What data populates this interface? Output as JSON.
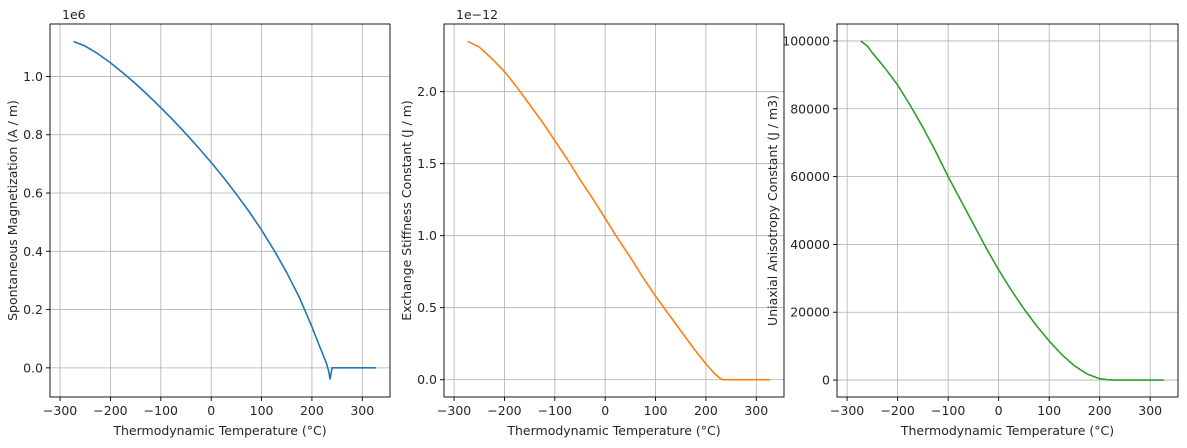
{
  "chart_data": [
    {
      "type": "line",
      "xlabel": "Thermodynamic Temperature (°C)",
      "ylabel": "Spontaneous Magnetization (A / m)",
      "offset_text": "1e6",
      "xlim": [
        -320,
        355
      ],
      "ylim": [
        -0.1,
        1.18
      ],
      "xticks": [
        -300,
        -200,
        -100,
        0,
        100,
        200,
        300
      ],
      "yticks": [
        0.0,
        0.2,
        0.4,
        0.6,
        0.8,
        1.0
      ],
      "xtick_labels": [
        "−300",
        "−200",
        "−100",
        "0",
        "100",
        "200",
        "300"
      ],
      "ytick_labels": [
        "0.0",
        "0.2",
        "0.4",
        "0.6",
        "0.8",
        "1.0"
      ],
      "grid": true,
      "color": "#1f77b4",
      "series": [
        {
          "x": [
            -273,
            -250,
            -225,
            -200,
            -175,
            -150,
            -125,
            -100,
            -75,
            -50,
            -25,
            0,
            25,
            50,
            75,
            100,
            125,
            150,
            175,
            200,
            215,
            228,
            233,
            236,
            240,
            260,
            300,
            327
          ],
          "values": [
            1.12,
            1.104,
            1.078,
            1.047,
            1.012,
            0.975,
            0.935,
            0.893,
            0.849,
            0.803,
            0.755,
            0.705,
            0.652,
            0.596,
            0.537,
            0.473,
            0.403,
            0.327,
            0.242,
            0.141,
            0.075,
            0.02,
            -0.01,
            -0.038,
            0.0,
            0.0,
            0.0,
            0.0
          ]
        }
      ]
    },
    {
      "type": "line",
      "xlabel": "Thermodynamic Temperature (°C)",
      "ylabel": "Exchange Stiffness Constant (J / m)",
      "offset_text": "1e−12",
      "xlim": [
        -320,
        355
      ],
      "ylim": [
        -0.12,
        2.47
      ],
      "xticks": [
        -300,
        -200,
        -100,
        0,
        100,
        200,
        300
      ],
      "yticks": [
        0.0,
        0.5,
        1.0,
        1.5,
        2.0
      ],
      "xtick_labels": [
        "−300",
        "−200",
        "−100",
        "0",
        "100",
        "200",
        "300"
      ],
      "ytick_labels": [
        "0.0",
        "0.5",
        "1.0",
        "1.5",
        "2.0"
      ],
      "grid": true,
      "color": "#ff7f0e",
      "series": [
        {
          "x": [
            -273,
            -250,
            -225,
            -200,
            -175,
            -150,
            -125,
            -100,
            -75,
            -50,
            -25,
            0,
            25,
            50,
            75,
            100,
            125,
            150,
            175,
            200,
            215,
            228,
            233,
            240,
            260,
            300,
            327
          ],
          "values": [
            2.35,
            2.31,
            2.23,
            2.14,
            2.03,
            1.91,
            1.79,
            1.66,
            1.53,
            1.39,
            1.26,
            1.12,
            0.98,
            0.85,
            0.71,
            0.58,
            0.46,
            0.34,
            0.22,
            0.11,
            0.05,
            0.01,
            0.0,
            0.0,
            0.0,
            0.0,
            0.0
          ]
        }
      ]
    },
    {
      "type": "line",
      "xlabel": "Thermodynamic Temperature (°C)",
      "ylabel": "Uniaxial Anisotropy Constant (J / m3)",
      "offset_text": "",
      "xlim": [
        -320,
        355
      ],
      "ylim": [
        -5000,
        105000
      ],
      "xticks": [
        -300,
        -200,
        -100,
        0,
        100,
        200,
        300
      ],
      "yticks": [
        0,
        20000,
        40000,
        60000,
        80000,
        100000
      ],
      "xtick_labels": [
        "−300",
        "−200",
        "−100",
        "0",
        "100",
        "200",
        "300"
      ],
      "ytick_labels": [
        "0",
        "20000",
        "40000",
        "60000",
        "80000",
        "100000"
      ],
      "grid": true,
      "color": "#2ca02c",
      "series": [
        {
          "x": [
            -273,
            -260,
            -250,
            -225,
            -200,
            -175,
            -150,
            -125,
            -100,
            -75,
            -50,
            -25,
            0,
            25,
            50,
            75,
            100,
            125,
            150,
            175,
            200,
            215,
            230,
            260,
            300,
            327
          ],
          "values": [
            100000,
            98500,
            96500,
            92000,
            87000,
            81000,
            74500,
            67500,
            60000,
            53000,
            46000,
            39000,
            32500,
            26500,
            21000,
            16000,
            11500,
            7500,
            4200,
            1800,
            400,
            100,
            0,
            0,
            0,
            0
          ]
        }
      ]
    }
  ]
}
